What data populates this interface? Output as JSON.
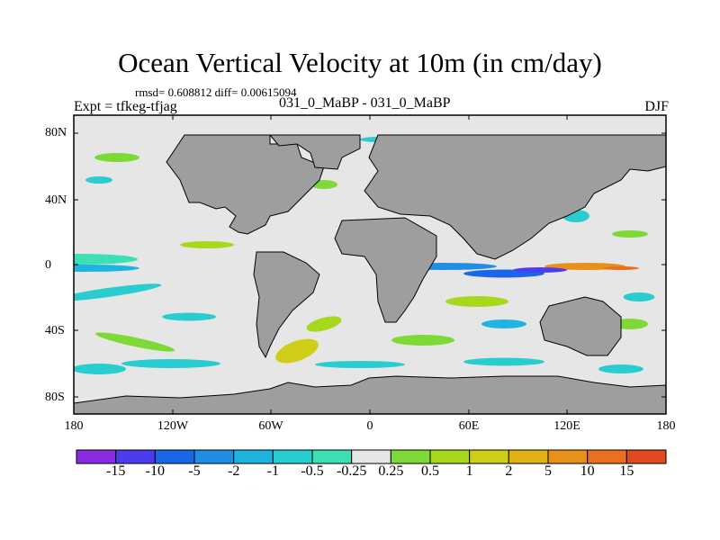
{
  "header": {
    "title": "Ocean Vertical Velocity at 10m (in cm/day)",
    "stats": "rmsd= 0.608812  diff= 0.00615094",
    "experiment": "Expt = tfkeg-tfjag",
    "case_pair": "031_0_MaBP - 031_0_MaBP",
    "season": "DJF"
  },
  "map": {
    "lat_labels": [
      "80N",
      "40N",
      "0",
      "40S",
      "80S"
    ],
    "lon_labels": [
      "180",
      "120W",
      "60W",
      "0",
      "60E",
      "120E",
      "180"
    ],
    "land_color": "#9e9e9e",
    "ocean_neutral_color": "#e6e6e6"
  },
  "colorbar": {
    "colors": [
      "#8a2be2",
      "#4b3cf0",
      "#1a66e8",
      "#1f8fe6",
      "#1fb3df",
      "#29cdd0",
      "#3de0b4",
      "#e6e6e6",
      "#7dd936",
      "#a8d81e",
      "#cfcd18",
      "#e0b214",
      "#e8901a",
      "#e8701e",
      "#e04a1c"
    ],
    "labels": [
      "-15",
      "-10",
      "-5",
      "-2",
      "-1",
      "-0.5",
      "-0.25",
      "0.25",
      "0.5",
      "1",
      "2",
      "5",
      "10",
      "15"
    ]
  }
}
